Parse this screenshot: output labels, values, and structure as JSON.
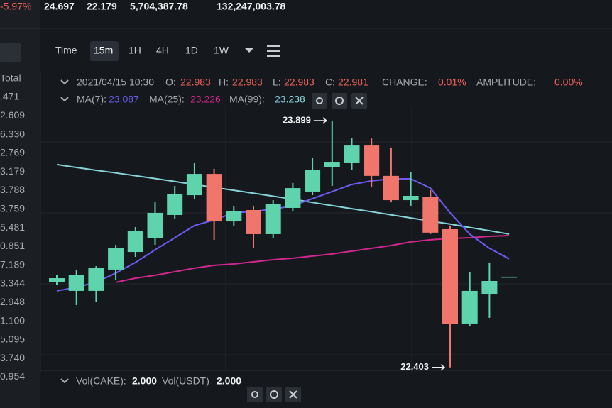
{
  "top_bar": {
    "change": "-5.97%",
    "high": "24.697",
    "low": "22.179",
    "volume_base": "5,704,387.78",
    "volume_quote": "132,247,003.78"
  },
  "side_list": {
    "header": "Total",
    "values": [
      ".471",
      "2.609",
      "6.330",
      "2.769",
      "3.179",
      "3.788",
      "3.759",
      "5.481",
      "0.851",
      "7.189",
      "3.344",
      "2.948",
      "1.100",
      "5.095",
      "3.740",
      "0.954"
    ]
  },
  "toolbar": {
    "intervals": [
      "Time",
      "15m",
      "1H",
      "4H",
      "1D",
      "1W"
    ],
    "active": 1
  },
  "info": {
    "time": "2021/04/15 10:30",
    "open_label": "O:",
    "open": 22.983,
    "high_label": "H:",
    "high": 22.983,
    "low_label": "L:",
    "low": 22.983,
    "close_label": "C:",
    "close": 22.981,
    "change_label": "CHANGE:",
    "change": "0.01%",
    "amplitude_label": "AMPLITUDE:",
    "amplitude": "0.00%"
  },
  "volume": {
    "base_label": "Vol(CAKE):",
    "base": "2.000",
    "quote_label": "Vol(USDT)",
    "quote": "2.000"
  },
  "chart": {
    "type": "candlestick",
    "ylim": [
      22.2,
      24.0
    ],
    "up_color": "#5fd4ac",
    "down_color": "#f0766c",
    "candles": [
      {
        "open": 22.919,
        "high": 22.962,
        "low": 22.901,
        "close": 22.944
      },
      {
        "open": 22.867,
        "high": 22.996,
        "low": 22.781,
        "close": 22.962
      },
      {
        "open": 22.867,
        "high": 23.017,
        "low": 22.802,
        "close": 23.005
      },
      {
        "open": 22.996,
        "high": 23.146,
        "low": 22.931,
        "close": 23.125
      },
      {
        "open": 23.103,
        "high": 23.254,
        "low": 23.073,
        "close": 23.232
      },
      {
        "open": 23.189,
        "high": 23.404,
        "low": 23.146,
        "close": 23.34
      },
      {
        "open": 23.327,
        "high": 23.503,
        "low": 23.306,
        "close": 23.456
      },
      {
        "open": 23.447,
        "high": 23.641,
        "low": 23.426,
        "close": 23.576
      },
      {
        "open": 23.576,
        "high": 23.607,
        "low": 23.177,
        "close": 23.288
      },
      {
        "open": 23.288,
        "high": 23.383,
        "low": 23.263,
        "close": 23.349
      },
      {
        "open": 23.357,
        "high": 23.383,
        "low": 23.125,
        "close": 23.211
      },
      {
        "open": 23.211,
        "high": 23.417,
        "low": 23.189,
        "close": 23.392
      },
      {
        "open": 23.37,
        "high": 23.521,
        "low": 23.349,
        "close": 23.49
      },
      {
        "open": 23.469,
        "high": 23.675,
        "low": 23.447,
        "close": 23.598
      },
      {
        "open": 23.619,
        "high": 23.899,
        "low": 23.503,
        "close": 23.645
      },
      {
        "open": 23.641,
        "high": 23.791,
        "low": 23.598,
        "close": 23.748
      },
      {
        "open": 23.748,
        "high": 23.791,
        "low": 23.499,
        "close": 23.564
      },
      {
        "open": 23.564,
        "high": 23.736,
        "low": 23.404,
        "close": 23.417
      },
      {
        "open": 23.417,
        "high": 23.585,
        "low": 23.383,
        "close": 23.443
      },
      {
        "open": 23.435,
        "high": 23.478,
        "low": 23.211,
        "close": 23.22
      },
      {
        "open": 23.241,
        "high": 23.263,
        "low": 22.403,
        "close": 22.665
      },
      {
        "open": 22.669,
        "high": 22.983,
        "low": 22.652,
        "close": 22.867
      },
      {
        "open": 22.845,
        "high": 23.039,
        "low": 22.704,
        "close": 22.927
      },
      {
        "open": 22.953,
        "high": 22.953,
        "low": 22.953,
        "close": 22.953
      }
    ],
    "series": [
      {
        "name": "MA(7):",
        "value": 23.087,
        "color": "#6a5cf0",
        "values": [
          22.867,
          22.889,
          22.919,
          22.975,
          23.039,
          23.116,
          23.189,
          23.263,
          23.297,
          23.34,
          23.349,
          23.362,
          23.383,
          23.426,
          23.469,
          23.512,
          23.534,
          23.546,
          23.546,
          23.49,
          23.34,
          23.211,
          23.125,
          23.061
        ]
      },
      {
        "name": "MA(25):",
        "value": 23.226,
        "color": "#d0288c",
        "values": [
          null,
          null,
          null,
          22.919,
          22.944,
          22.962,
          22.983,
          23.005,
          23.022,
          23.03,
          23.043,
          23.056,
          23.065,
          23.078,
          23.091,
          23.108,
          23.125,
          23.142,
          23.164,
          23.177,
          23.185,
          23.189,
          23.198,
          23.202
        ]
      },
      {
        "name": "MA(99):",
        "value": 23.238,
        "color": "#86d3d8",
        "values": [
          23.633,
          23.615,
          23.598,
          23.582,
          23.565,
          23.548,
          23.53,
          23.512,
          23.494,
          23.477,
          23.459,
          23.441,
          23.423,
          23.403,
          23.384,
          23.365,
          23.347,
          23.328,
          23.309,
          23.29,
          23.272,
          23.251,
          23.232,
          23.211
        ]
      }
    ]
  }
}
